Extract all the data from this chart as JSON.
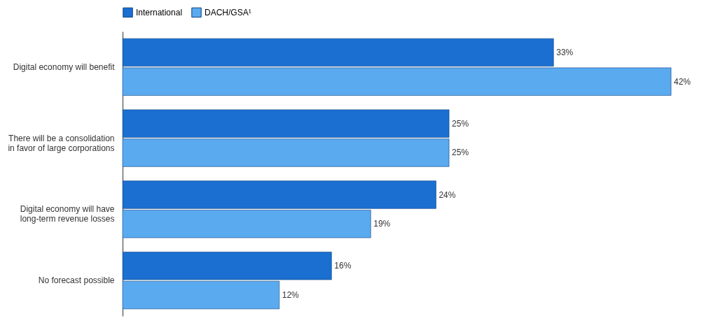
{
  "chart_data": {
    "type": "bar",
    "orientation": "horizontal",
    "legend": "top",
    "categories": [
      "Digital economy will benefit",
      "There will be a consolidation in favor of large corporations",
      "Digital economy will have long-term revenue losses",
      "No forecast possible"
    ],
    "series": [
      {
        "name": "International",
        "color": "#1a6fd1",
        "values": [
          33,
          25,
          24,
          16
        ],
        "value_labels": [
          "33%",
          "25%",
          "24%",
          "16%"
        ]
      },
      {
        "name": "DACH/GSA¹",
        "color": "#5aaaf0",
        "values": [
          42,
          25,
          19,
          12
        ],
        "value_labels": [
          "42%",
          "25%",
          "19%",
          "12%"
        ]
      }
    ]
  }
}
